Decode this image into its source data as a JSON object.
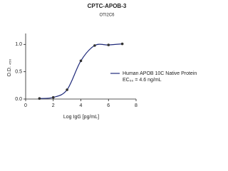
{
  "chart_data": {
    "type": "line",
    "title": "CPTC-APOB-3",
    "subtitle": "OTI2C6",
    "x_label": "Log IgG [pg/mL]",
    "y_label": "O.D. ₄₅₀",
    "annotation": "EC₅₀ = 4.6 ng/mL",
    "xlim": [
      0,
      8
    ],
    "xticks": [
      0,
      2,
      4,
      6,
      8
    ],
    "ylim": [
      0,
      1.2
    ],
    "yticks": [
      {
        "value": 0,
        "label": "0.0"
      },
      0.5,
      {
        "value": 1,
        "label": "1.0"
      }
    ],
    "series": [
      {
        "name": "Human APOB 10C Native Protein",
        "color": "#1f2a7a",
        "x": [
          1,
          2,
          3,
          4,
          5,
          6,
          7
        ],
        "values": [
          0.01,
          0.03,
          0.17,
          0.7,
          0.98,
          0.99,
          1.01
        ]
      }
    ]
  }
}
